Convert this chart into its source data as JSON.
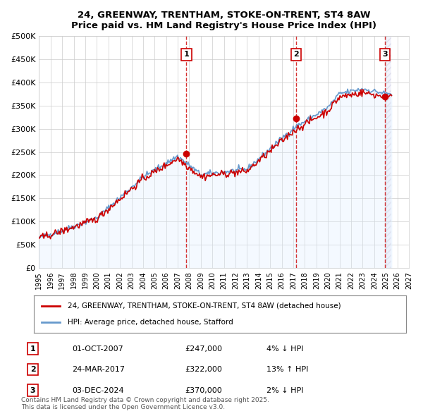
{
  "title_line1": "24, GREENWAY, TRENTHAM, STOKE-ON-TRENT, ST4 8AW",
  "title_line2": "Price paid vs. HM Land Registry's House Price Index (HPI)",
  "ylabel": "",
  "xlabel": "",
  "ylim": [
    0,
    500000
  ],
  "yticks": [
    0,
    50000,
    100000,
    150000,
    200000,
    250000,
    300000,
    350000,
    400000,
    450000,
    500000
  ],
  "ytick_labels": [
    "£0",
    "£50K",
    "£100K",
    "£150K",
    "£200K",
    "£250K",
    "£300K",
    "£350K",
    "£400K",
    "£450K",
    "£500K"
  ],
  "xlim_start": 1995.0,
  "xlim_end": 2027.0,
  "xticks": [
    1995,
    1996,
    1997,
    1998,
    1999,
    2000,
    2001,
    2002,
    2003,
    2004,
    2005,
    2006,
    2007,
    2008,
    2009,
    2010,
    2011,
    2012,
    2013,
    2014,
    2015,
    2016,
    2017,
    2018,
    2019,
    2020,
    2021,
    2022,
    2023,
    2024,
    2025,
    2026,
    2027
  ],
  "purchase_color": "#cc0000",
  "hpi_color": "#6699cc",
  "hpi_fill_color": "#ddeeff",
  "marker_color": "#cc0000",
  "vline_color": "#cc0000",
  "marker_box_color": "#cc0000",
  "background_hatch_color": "#e8e8f8",
  "purchases": [
    {
      "year": 2007.75,
      "price": 247000,
      "label": "1",
      "pct": "4%",
      "dir": "↓",
      "date": "01-OCT-2007"
    },
    {
      "year": 2017.23,
      "price": 322000,
      "label": "2",
      "pct": "13%",
      "dir": "↑",
      "date": "24-MAR-2017"
    },
    {
      "year": 2024.92,
      "price": 370000,
      "label": "3",
      "pct": "2%",
      "dir": "↓",
      "date": "03-DEC-2024"
    }
  ],
  "legend_line1": "24, GREENWAY, TRENTHAM, STOKE-ON-TRENT, ST4 8AW (detached house)",
  "legend_line2": "HPI: Average price, detached house, Stafford",
  "footnote": "Contains HM Land Registry data © Crown copyright and database right 2025.\nThis data is licensed under the Open Government Licence v3.0."
}
